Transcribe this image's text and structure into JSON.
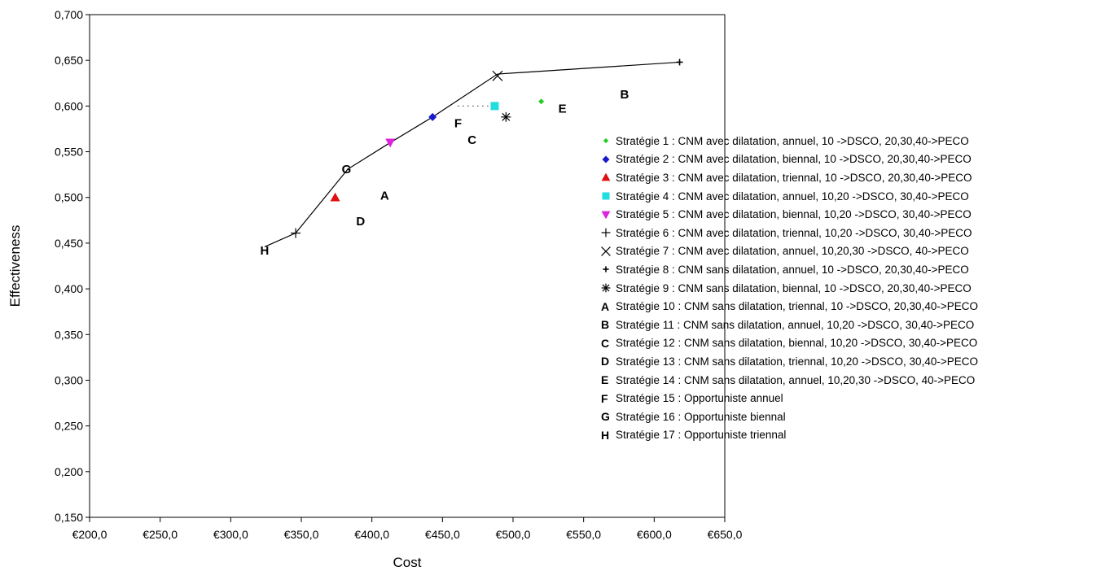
{
  "chart_data": {
    "type": "scatter",
    "title": "",
    "xlabel": "Cost",
    "ylabel": "Effectiveness",
    "xlim": [
      200,
      650
    ],
    "ylim": [
      0.15,
      0.7
    ],
    "x_ticks": [
      200,
      250,
      300,
      350,
      400,
      450,
      500,
      550,
      600,
      650
    ],
    "x_tick_labels": [
      "€200,0",
      "€250,0",
      "€300,0",
      "€350,0",
      "€400,0",
      "€450,0",
      "€500,0",
      "€550,0",
      "€600,0",
      "€650,0"
    ],
    "y_ticks": [
      0.15,
      0.2,
      0.25,
      0.3,
      0.35,
      0.4,
      0.45,
      0.5,
      0.55,
      0.6,
      0.65,
      0.7
    ],
    "y_tick_labels": [
      "0,150",
      "0,200",
      "0,250",
      "0,300",
      "0,350",
      "0,400",
      "0,450",
      "0,500",
      "0,550",
      "0,600",
      "0,650",
      "0,700"
    ],
    "grid": false,
    "legend_position": "right",
    "frontier": {
      "x": [
        324,
        346,
        383,
        413,
        443,
        489,
        618
      ],
      "y": [
        0.446,
        0.461,
        0.531,
        0.56,
        0.588,
        0.635,
        0.648
      ]
    },
    "dotted_segment": {
      "x": [
        461,
        487
      ],
      "y": [
        0.6,
        0.6
      ]
    },
    "series": [
      {
        "name": "Stratégie 1 : CNM avec dilatation, annuel, 10 ->DSCO, 20,30,40->PECO",
        "symbol": "diamond-small",
        "color": "#22cc22",
        "x": 520,
        "y": 0.605
      },
      {
        "name": "Stratégie 2 : CNM avec dilatation, biennal, 10 ->DSCO, 20,30,40->PECO",
        "symbol": "diamond",
        "color": "#1a1acc",
        "x": 443,
        "y": 0.588
      },
      {
        "name": "Stratégie 3 : CNM avec dilatation, triennal, 10 ->DSCO, 20,30,40->PECO",
        "symbol": "triangle-up",
        "color": "#e01010",
        "x": 374,
        "y": 0.5
      },
      {
        "name": "Stratégie 4 : CNM avec dilatation, annuel, 10,20 ->DSCO, 30,40->PECO",
        "symbol": "square",
        "color": "#22dddd",
        "x": 487,
        "y": 0.6
      },
      {
        "name": "Stratégie 5 : CNM avec dilatation, biennal, 10,20 ->DSCO, 30,40->PECO",
        "symbol": "triangle-down",
        "color": "#dd22dd",
        "x": 413,
        "y": 0.56
      },
      {
        "name": "Stratégie 6 : CNM avec dilatation, triennal, 10,20 ->DSCO, 30,40->PECO",
        "symbol": "plus",
        "color": "#000000",
        "x": 346,
        "y": 0.461
      },
      {
        "name": "Stratégie 7 : CNM avec dilatation, annuel, 10,20,30 ->DSCO, 40->PECO",
        "symbol": "x",
        "color": "#000000",
        "x": 489,
        "y": 0.633
      },
      {
        "name": "Stratégie 8 : CNM sans dilatation, annuel, 10 ->DSCO, 20,30,40->PECO",
        "symbol": "plus-small",
        "color": "#000000",
        "x": 618,
        "y": 0.648
      },
      {
        "name": "Stratégie 9 : CNM sans dilatation, biennal, 10 ->DSCO, 20,30,40->PECO",
        "symbol": "asterisk",
        "color": "#000000",
        "x": 495,
        "y": 0.588
      },
      {
        "name": "Stratégie 10 : CNM sans dilatation, triennal, 10 ->DSCO, 20,30,40->PECO",
        "symbol": "letter",
        "letter": "A",
        "color": "#000000",
        "x": 409,
        "y": 0.502
      },
      {
        "name": "Stratégie 11 : CNM sans dilatation, annuel, 10,20 ->DSCO, 30,40->PECO",
        "symbol": "letter",
        "letter": "B",
        "color": "#000000",
        "x": 579,
        "y": 0.613
      },
      {
        "name": "Stratégie 12 : CNM sans dilatation, biennal, 10,20 ->DSCO, 30,40->PECO",
        "symbol": "letter",
        "letter": "C",
        "color": "#000000",
        "x": 471,
        "y": 0.563
      },
      {
        "name": "Stratégie 13 : CNM sans dilatation, triennal, 10,20 ->DSCO, 30,40->PECO",
        "symbol": "letter",
        "letter": "D",
        "color": "#000000",
        "x": 392,
        "y": 0.474
      },
      {
        "name": "Stratégie 14 : CNM sans dilatation, annuel, 10,20,30 ->DSCO, 40->PECO",
        "symbol": "letter",
        "letter": "E",
        "color": "#000000",
        "x": 535,
        "y": 0.597
      },
      {
        "name": "Stratégie 15 : Opportuniste annuel",
        "symbol": "letter",
        "letter": "F",
        "color": "#000000",
        "x": 461,
        "y": 0.581
      },
      {
        "name": "Stratégie 16 : Opportuniste biennal",
        "symbol": "letter",
        "letter": "G",
        "color": "#000000",
        "x": 382,
        "y": 0.531
      },
      {
        "name": "Stratégie 17 : Opportuniste triennal",
        "symbol": "letter",
        "letter": "H",
        "color": "#000000",
        "x": 324,
        "y": 0.442
      }
    ]
  }
}
